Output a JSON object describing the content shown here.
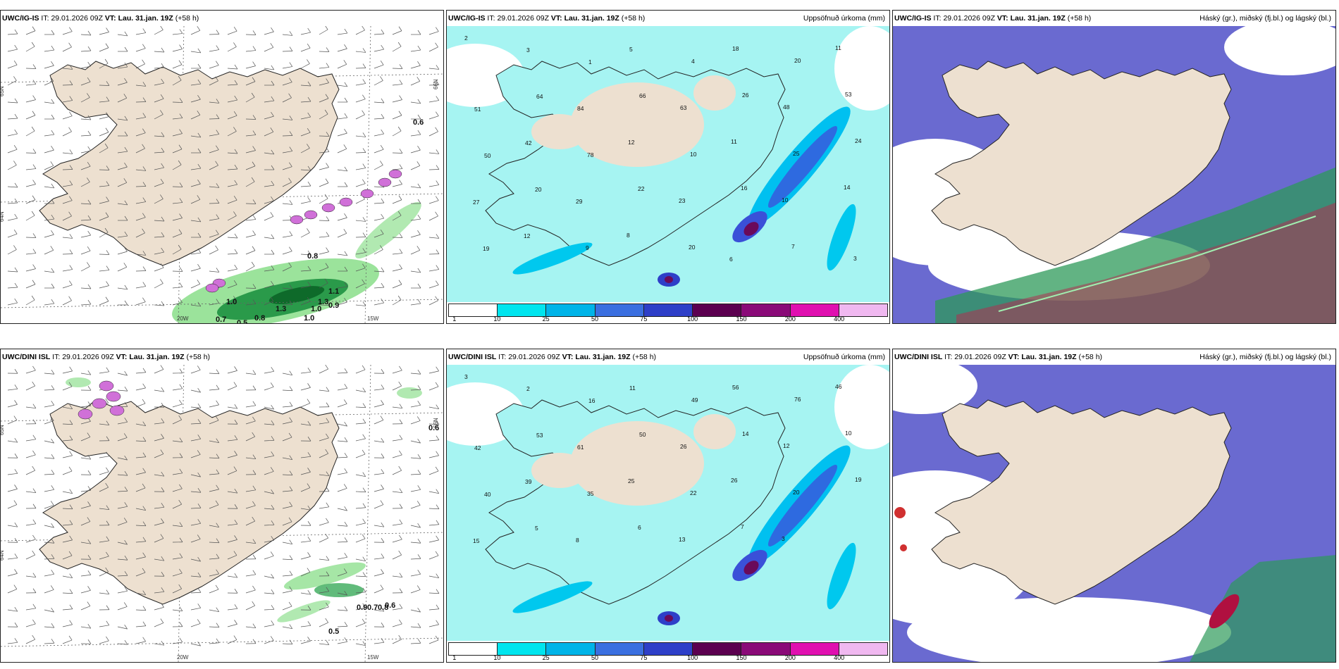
{
  "rows": [
    {
      "model": "UWC/IG-IS",
      "it_label": "IT:",
      "it_value": "29.01.2026 09Z",
      "vt_label": "VT:",
      "vt_value": "Lau. 31.jan. 19Z",
      "lead": "(+58 h)",
      "wind_labels": [
        "0.6",
        "0.8",
        "0.7",
        "0.8",
        "0.5",
        "1.0",
        "1.3",
        "1.1",
        "1.0",
        "0.9",
        "1.3",
        "1.0"
      ],
      "precip_labels": [
        "2",
        "3",
        "1",
        "5",
        "4",
        "18",
        "20",
        "11",
        "51",
        "64",
        "84",
        "66",
        "63",
        "26",
        "48",
        "53",
        "50",
        "42",
        "78",
        "12",
        "10",
        "11",
        "25",
        "24",
        "27",
        "20",
        "29",
        "22",
        "23",
        "16",
        "10",
        "14",
        "19",
        "12",
        "9",
        "8",
        "20",
        "6",
        "7",
        "3"
      ],
      "axis_labels": [
        "20W",
        "15W",
        "65N",
        "64N",
        "66N"
      ]
    },
    {
      "model": "UWC/DINI ISL",
      "it_label": "IT:",
      "it_value": "29.01.2026 09Z",
      "vt_label": "VT:",
      "vt_value": "Lau. 31.jan. 19Z",
      "lead": "(+58 h)",
      "wind_labels": [
        "0.6",
        "0.9",
        "0.7",
        "0.8",
        "0.6",
        "0.5"
      ],
      "precip_labels": [
        "3",
        "2",
        "16",
        "11",
        "49",
        "56",
        "76",
        "46",
        "42",
        "53",
        "61",
        "50",
        "26",
        "14",
        "12",
        "10",
        "40",
        "39",
        "35",
        "25",
        "22",
        "26",
        "20",
        "19",
        "15",
        "5",
        "8",
        "6",
        "13",
        "7",
        "3"
      ],
      "axis_labels": [
        "20W",
        "15W",
        "65N",
        "64N",
        "66N"
      ]
    }
  ],
  "precip_title": "Uppsöfnuð úrkoma (mm)",
  "cloud_title": "Háský (gr.), miðský (fj.bl.) og lágský (bl.)",
  "colorbar": {
    "ticks": [
      "1",
      "10",
      "25",
      "50",
      "75",
      "100",
      "150",
      "200",
      "400"
    ],
    "colors": [
      "#ffffff",
      "#00e5ee",
      "#00b4e8",
      "#3a6fe0",
      "#2e3fc8",
      "#5c0050",
      "#8a0a78",
      "#e010b0",
      "#f0b8f0"
    ]
  },
  "colors": {
    "land": "#ede0d0",
    "precip_sea": "#a6f4f2",
    "cloud_high": "#6a6ad0",
    "wind_green": "#90e090"
  }
}
